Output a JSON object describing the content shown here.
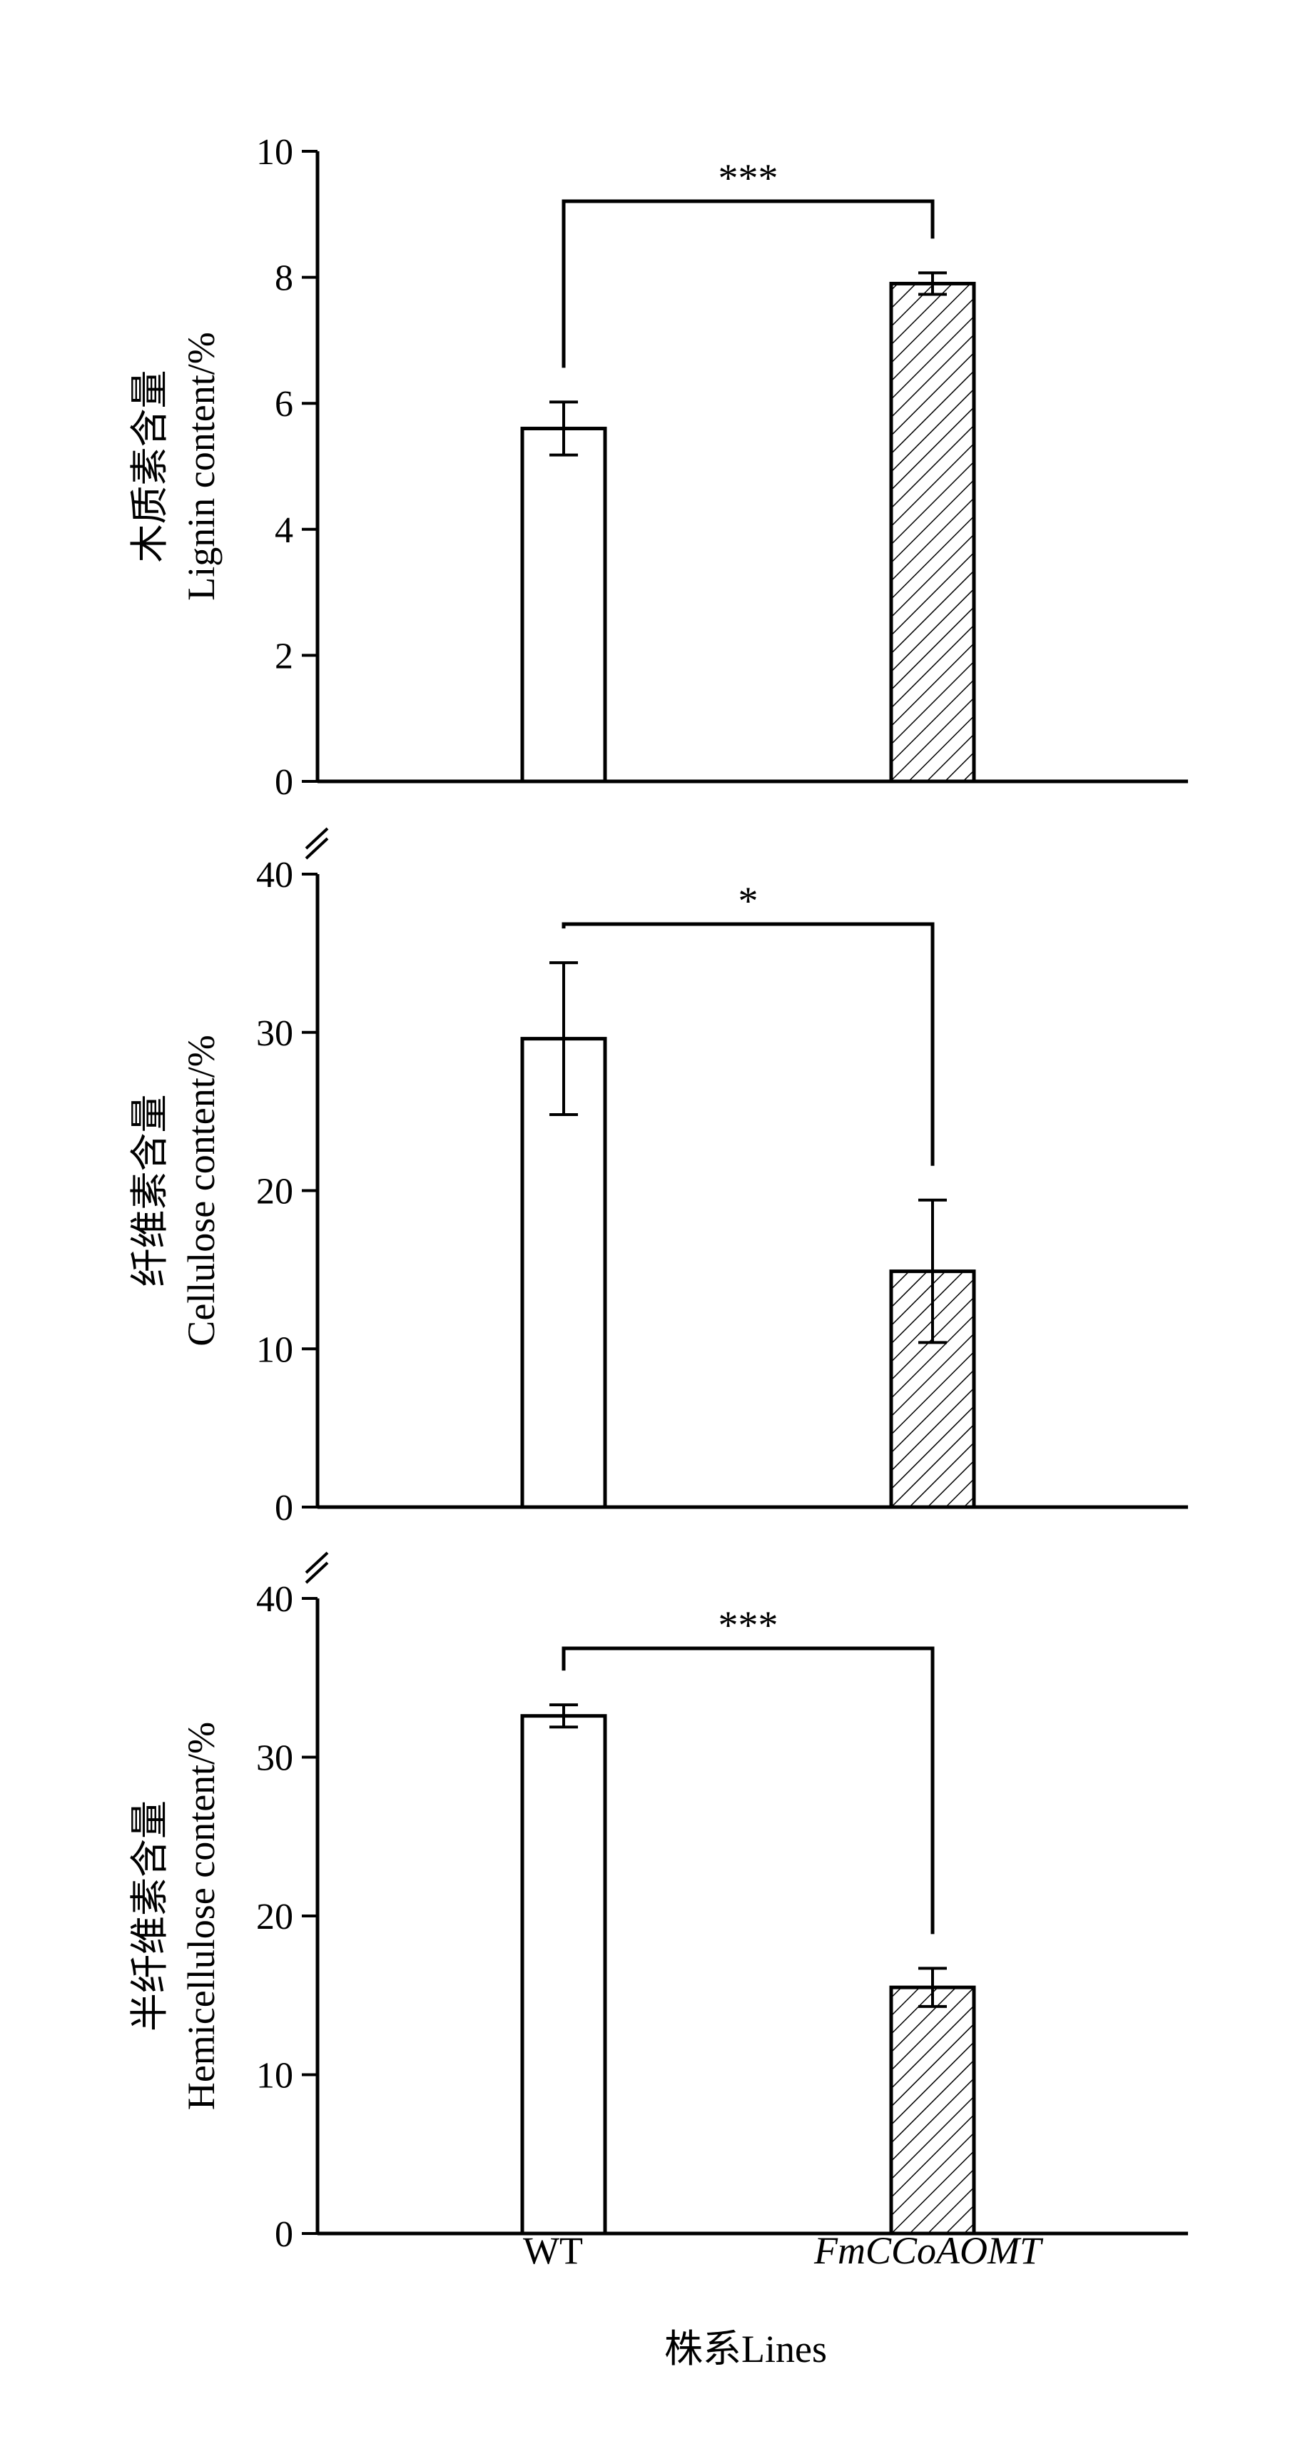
{
  "chart_data": [
    {
      "type": "bar",
      "categories": [
        "WT",
        "FmCCoAOMT"
      ],
      "values": [
        5.6,
        7.9
      ],
      "errors": [
        0.42,
        0.17
      ],
      "ylabel_cn": "木质素含量",
      "ylabel_en": "Lignin content/%",
      "ylim": [
        0,
        10
      ],
      "yticks": [
        "0",
        "2",
        "4",
        "6",
        "8",
        "10"
      ],
      "significance": "***"
    },
    {
      "type": "bar",
      "categories": [
        "WT",
        "FmCCoAOMT"
      ],
      "values": [
        29.6,
        14.9
      ],
      "errors": [
        4.8,
        4.5
      ],
      "ylabel_cn": "纤维素含量",
      "ylabel_en": "Cellulose content/%",
      "ylim": [
        0,
        40
      ],
      "yticks": [
        "0",
        "10",
        "20",
        "30",
        "40"
      ],
      "significance": "*"
    },
    {
      "type": "bar",
      "categories": [
        "WT",
        "FmCCoAOMT"
      ],
      "values": [
        32.6,
        15.5
      ],
      "errors": [
        0.7,
        1.2
      ],
      "ylabel_cn": "半纤维素含量",
      "ylabel_en": "Hemicellulose content/%",
      "ylim": [
        0,
        40
      ],
      "yticks": [
        "0",
        "10",
        "20",
        "30",
        "40"
      ],
      "significance": "***"
    }
  ],
  "x_axis": {
    "categories": [
      "WT",
      "FmCCoAOMT"
    ],
    "xlabel": "株系Lines"
  },
  "colors": {
    "wt_fill": "#ffffff",
    "transgenic_hatch": "#000000",
    "axis": "#000000"
  }
}
